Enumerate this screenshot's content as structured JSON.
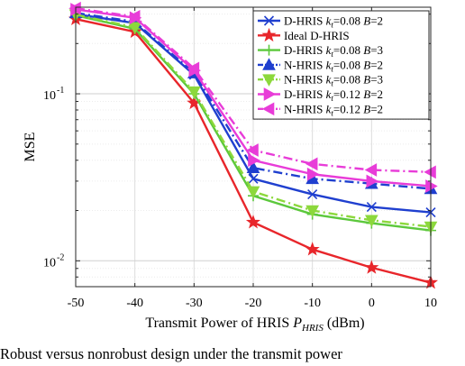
{
  "chart_data": {
    "type": "line",
    "xlabel": "Transmit Power of HRIS P_{HRIS} (dBm)",
    "xlabel_main": "Transmit Power of HRIS ",
    "xlabel_sym": "P",
    "xlabel_sub": "HRIS",
    "xlabel_unit": " (dBm)",
    "ylabel": "MSE",
    "yscale": "log",
    "xlim": [
      -50,
      10
    ],
    "ylim": [
      0.007,
      0.33
    ],
    "x": [
      -50,
      -40,
      -30,
      -20,
      -10,
      0,
      10
    ],
    "xtick_labels": [
      "-50",
      "-40",
      "-30",
      "-20",
      "-10",
      "0",
      "10"
    ],
    "ytick_labels": [
      {
        "value": 0.1,
        "base": "10",
        "exp": "-1"
      },
      {
        "value": 0.01,
        "base": "10",
        "exp": "-2"
      }
    ],
    "grid": true,
    "legend_position": "top-right",
    "series": [
      {
        "name": "D-HRIS k_t=0.08 B=2",
        "label_parts": [
          "D-HRIS ",
          "k",
          "t",
          "=0.08 ",
          "B",
          "=2"
        ],
        "color": "#1f3fcf",
        "dash": "solid",
        "marker": "x",
        "values": [
          0.3,
          0.265,
          0.13,
          0.031,
          0.025,
          0.021,
          0.0195
        ]
      },
      {
        "name": "Ideal D-HRIS",
        "label_parts": [
          "Ideal D-HRIS"
        ],
        "color": "#e8262b",
        "dash": "solid",
        "marker": "star",
        "values": [
          0.28,
          0.235,
          0.088,
          0.017,
          0.0117,
          0.0091,
          0.0074
        ]
      },
      {
        "name": "D-HRIS k_t=0.08 B=3",
        "label_parts": [
          "D-HRIS ",
          "k",
          "t",
          "=0.08 ",
          "B",
          "=3"
        ],
        "color": "#5cc83c",
        "dash": "solid",
        "marker": "plus",
        "values": [
          0.295,
          0.245,
          0.1,
          0.0245,
          0.019,
          0.0168,
          0.0152
        ]
      },
      {
        "name": "N-HRIS k_t=0.08 B=2",
        "label_parts": [
          "N-HRIS ",
          "k",
          "t",
          "=0.08 ",
          "B",
          "=2"
        ],
        "color": "#1f3fcf",
        "dash": "dashdot",
        "marker": "triangle-up",
        "values": [
          0.305,
          0.27,
          0.133,
          0.036,
          0.031,
          0.029,
          0.027
        ]
      },
      {
        "name": "N-HRIS k_t=0.08 B=3",
        "label_parts": [
          "N-HRIS ",
          "k",
          "t",
          "=0.08 ",
          "B",
          "=3"
        ],
        "color": "#8cd83c",
        "dash": "dashdot",
        "marker": "triangle-down",
        "values": [
          0.298,
          0.25,
          0.103,
          0.026,
          0.02,
          0.0175,
          0.016
        ]
      },
      {
        "name": "D-HRIS k_t=0.12 B=2",
        "label_parts": [
          "D-HRIS ",
          "k",
          "t",
          "=0.12 ",
          "B",
          "=2"
        ],
        "color": "#e83cd8",
        "dash": "solid",
        "marker": "triangle-right",
        "values": [
          0.32,
          0.285,
          0.138,
          0.04,
          0.033,
          0.03,
          0.028
        ]
      },
      {
        "name": "N-HRIS k_t=0.12 B=2",
        "label_parts": [
          "N-HRIS ",
          "k",
          "t",
          "=0.12 ",
          "B",
          "=2"
        ],
        "color": "#e83cd8",
        "dash": "dashdot",
        "marker": "triangle-left",
        "values": [
          0.325,
          0.29,
          0.142,
          0.046,
          0.038,
          0.035,
          0.034
        ]
      }
    ]
  },
  "caption": "Robust versus nonrobust design under the transmit power"
}
